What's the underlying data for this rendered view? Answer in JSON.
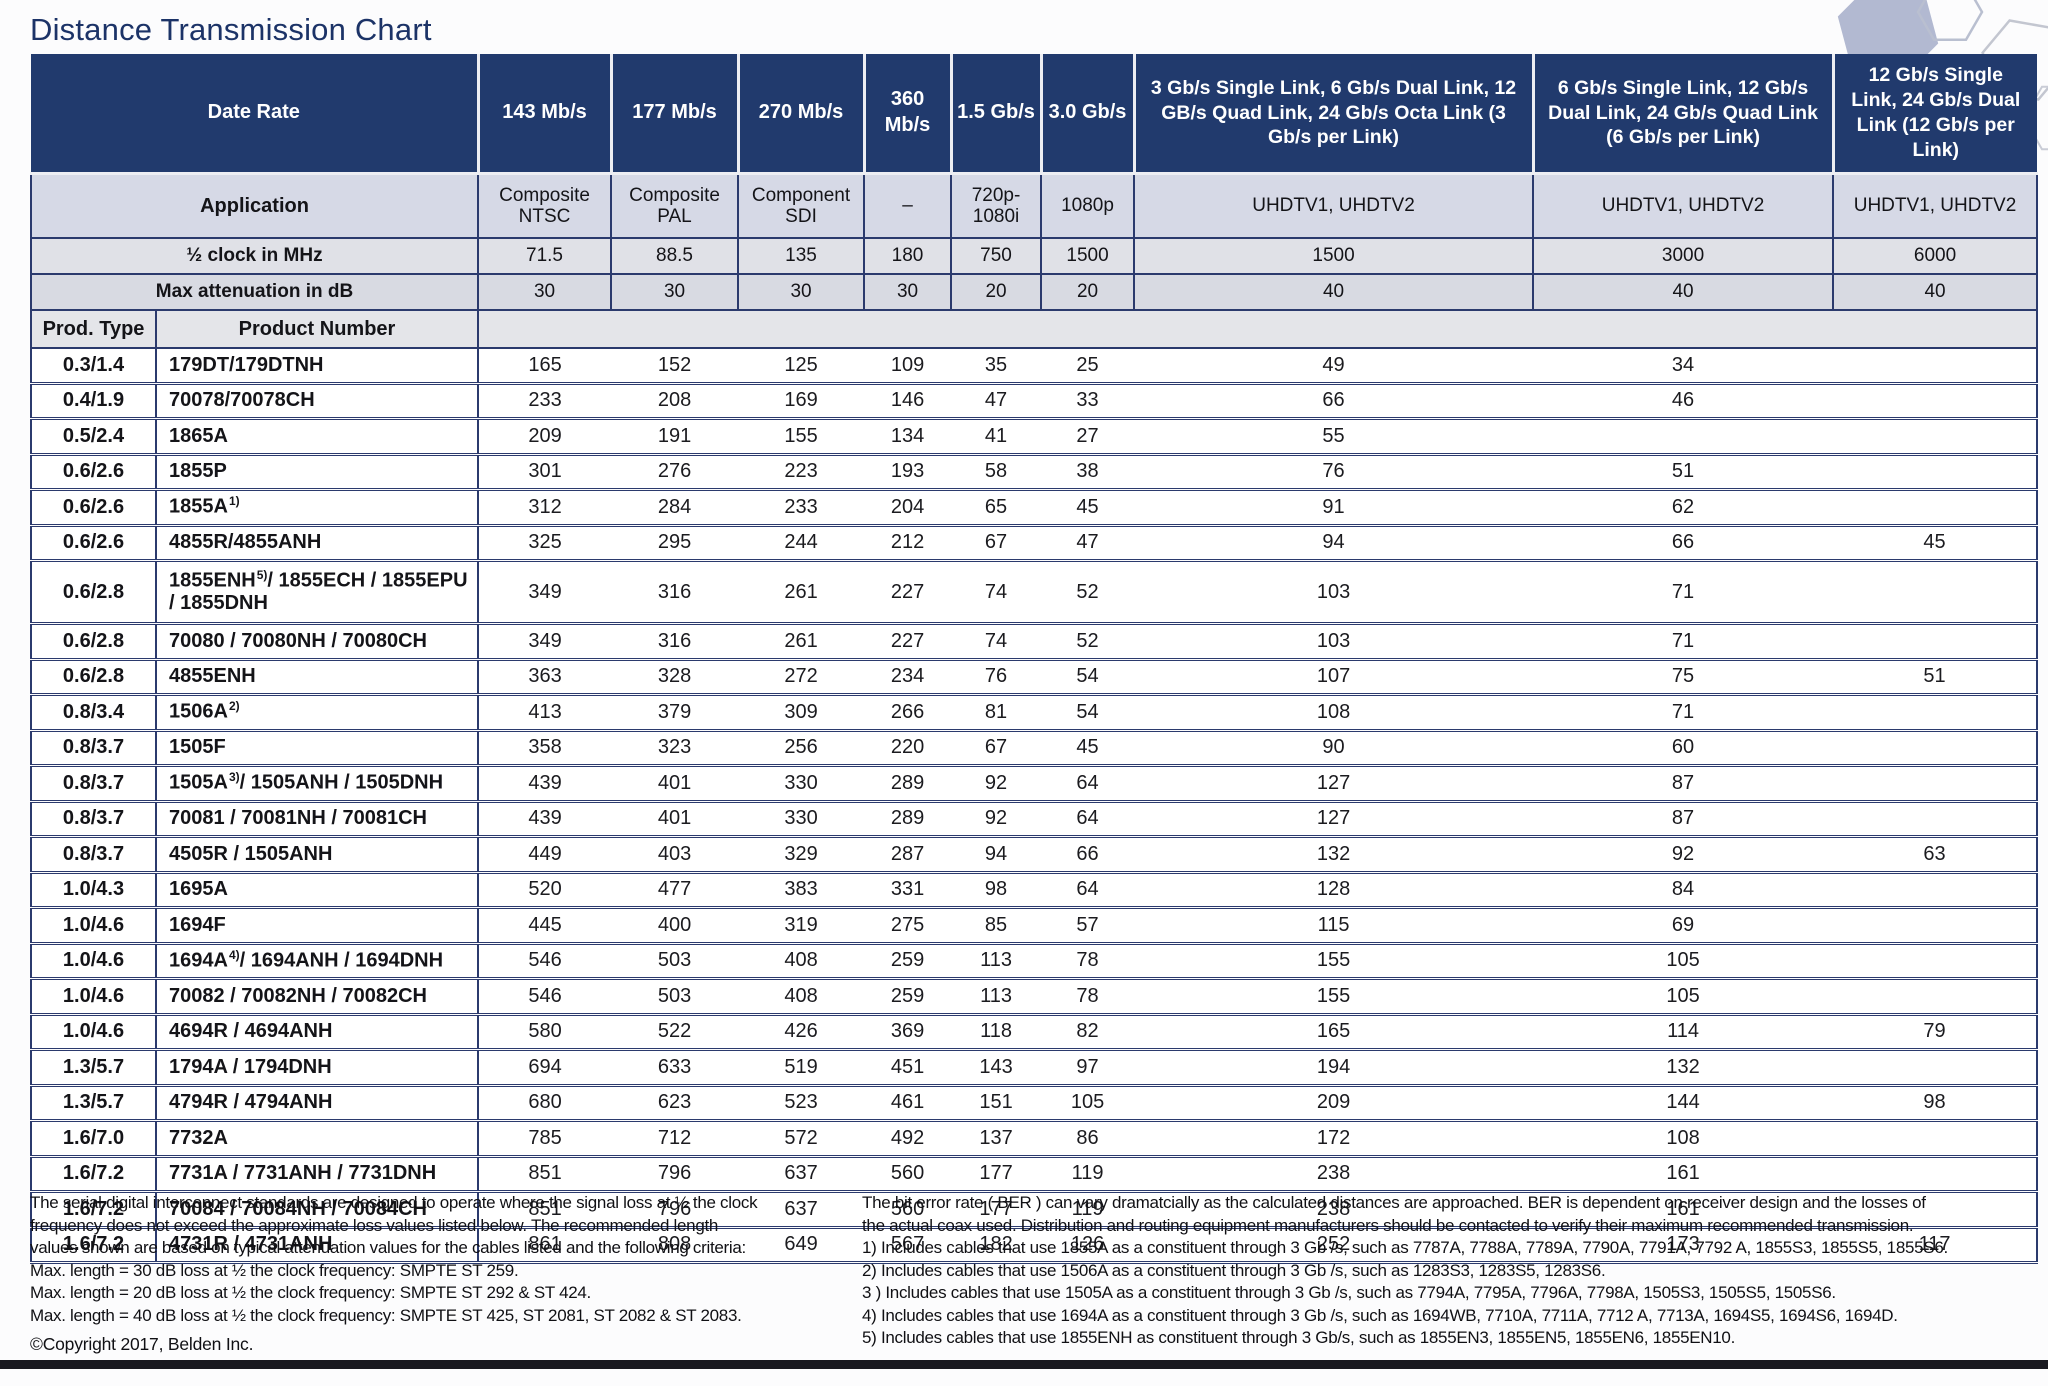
{
  "page": {
    "title": "Distance Transmission Chart"
  },
  "table": {
    "header": {
      "date_rate": "Date Rate",
      "application": "Application",
      "half_clock": "½ clock in MHz",
      "max_attenuation": "Max attenuation in dB",
      "prod_type": "Prod. Type",
      "product_number": "Product Number"
    },
    "columns": [
      {
        "rate": "143 Mb/s",
        "application": "Composite NTSC",
        "half_clock": "71.5",
        "max_attenuation": "30"
      },
      {
        "rate": "177 Mb/s",
        "application": "Composite PAL",
        "half_clock": "88.5",
        "max_attenuation": "30"
      },
      {
        "rate": "270 Mb/s",
        "application": "Component SDI",
        "half_clock": "135",
        "max_attenuation": "30"
      },
      {
        "rate": "360 Mb/s",
        "application": "–",
        "half_clock": "180",
        "max_attenuation": "30"
      },
      {
        "rate": "1.5 Gb/s",
        "application": "720p-1080i",
        "half_clock": "750",
        "max_attenuation": "20"
      },
      {
        "rate": "3.0 Gb/s",
        "application": "1080p",
        "half_clock": "1500",
        "max_attenuation": "20"
      },
      {
        "rate": "3 Gb/s Single Link, 6 Gb/s Dual Link, 12 GB/s Quad Link, 24 Gb/s Octa Link (3 Gb/s per Link)",
        "application": "UHDTV1, UHDTV2",
        "half_clock": "1500",
        "max_attenuation": "40"
      },
      {
        "rate": "6 Gb/s Single Link, 12 Gb/s Dual Link, 24 Gb/s Quad Link (6 Gb/s per Link)",
        "application": "UHDTV1, UHDTV2",
        "half_clock": "3000",
        "max_attenuation": "40"
      },
      {
        "rate": "12 Gb/s Single Link, 24 Gb/s Dual Link (12 Gb/s per Link)",
        "application": "UHDTV1, UHDTV2",
        "half_clock": "6000",
        "max_attenuation": "40"
      }
    ],
    "rows": [
      {
        "type": "0.3/1.4",
        "p1": "179DT/179DTNH",
        "sup": "",
        "p2": "",
        "tall": false,
        "v": [
          "165",
          "152",
          "125",
          "109",
          "35",
          "25",
          "49",
          "34",
          ""
        ]
      },
      {
        "type": "0.4/1.9",
        "p1": "70078/70078CH",
        "sup": "",
        "p2": "",
        "tall": false,
        "v": [
          "233",
          "208",
          "169",
          "146",
          "47",
          "33",
          "66",
          "46",
          ""
        ]
      },
      {
        "type": "0.5/2.4",
        "p1": "1865A",
        "sup": "",
        "p2": "",
        "tall": false,
        "v": [
          "209",
          "191",
          "155",
          "134",
          "41",
          "27",
          "55",
          "",
          ""
        ]
      },
      {
        "type": "0.6/2.6",
        "p1": "1855P",
        "sup": "",
        "p2": "",
        "tall": false,
        "v": [
          "301",
          "276",
          "223",
          "193",
          "58",
          "38",
          "76",
          "51",
          ""
        ]
      },
      {
        "type": "0.6/2.6",
        "p1": "1855A",
        "sup": "1)",
        "p2": "",
        "tall": false,
        "v": [
          "312",
          "284",
          "233",
          "204",
          "65",
          "45",
          "91",
          "62",
          ""
        ]
      },
      {
        "type": "0.6/2.6",
        "p1": "4855R/4855ANH",
        "sup": "",
        "p2": "",
        "tall": false,
        "v": [
          "325",
          "295",
          "244",
          "212",
          "67",
          "47",
          "94",
          "66",
          "45"
        ]
      },
      {
        "type": "0.6/2.8",
        "p1": "1855ENH",
        "sup": "5)",
        "p2": "/ 1855ECH / 1855EPU / 1855DNH",
        "tall": true,
        "v": [
          "349",
          "316",
          "261",
          "227",
          "74",
          "52",
          "103",
          "71",
          ""
        ]
      },
      {
        "type": "0.6/2.8",
        "p1": "70080 / 70080NH / 70080CH",
        "sup": "",
        "p2": "",
        "tall": false,
        "v": [
          "349",
          "316",
          "261",
          "227",
          "74",
          "52",
          "103",
          "71",
          ""
        ]
      },
      {
        "type": "0.6/2.8",
        "p1": "4855ENH",
        "sup": "",
        "p2": "",
        "tall": false,
        "v": [
          "363",
          "328",
          "272",
          "234",
          "76",
          "54",
          "107",
          "75",
          "51"
        ]
      },
      {
        "type": "0.8/3.4",
        "p1": "1506A",
        "sup": "2)",
        "p2": "",
        "tall": false,
        "v": [
          "413",
          "379",
          "309",
          "266",
          "81",
          "54",
          "108",
          "71",
          ""
        ]
      },
      {
        "type": "0.8/3.7",
        "p1": "1505F",
        "sup": "",
        "p2": "",
        "tall": false,
        "v": [
          "358",
          "323",
          "256",
          "220",
          "67",
          "45",
          "90",
          "60",
          ""
        ]
      },
      {
        "type": "0.8/3.7",
        "p1": "1505A",
        "sup": "3)",
        "p2": "/ 1505ANH / 1505DNH",
        "tall": false,
        "v": [
          "439",
          "401",
          "330",
          "289",
          "92",
          "64",
          "127",
          "87",
          ""
        ]
      },
      {
        "type": "0.8/3.7",
        "p1": "70081 / 70081NH / 70081CH",
        "sup": "",
        "p2": "",
        "tall": false,
        "v": [
          "439",
          "401",
          "330",
          "289",
          "92",
          "64",
          "127",
          "87",
          ""
        ]
      },
      {
        "type": "0.8/3.7",
        "p1": "4505R / 1505ANH",
        "sup": "",
        "p2": "",
        "tall": false,
        "v": [
          "449",
          "403",
          "329",
          "287",
          "94",
          "66",
          "132",
          "92",
          "63"
        ]
      },
      {
        "type": "1.0/4.3",
        "p1": "1695A",
        "sup": "",
        "p2": "",
        "tall": false,
        "v": [
          "520",
          "477",
          "383",
          "331",
          "98",
          "64",
          "128",
          "84",
          ""
        ]
      },
      {
        "type": "1.0/4.6",
        "p1": "1694F",
        "sup": "",
        "p2": "",
        "tall": false,
        "v": [
          "445",
          "400",
          "319",
          "275",
          "85",
          "57",
          "115",
          "69",
          ""
        ]
      },
      {
        "type": "1.0/4.6",
        "p1": "1694A",
        "sup": "4)",
        "p2": "/ 1694ANH / 1694DNH",
        "tall": false,
        "v": [
          "546",
          "503",
          "408",
          "259",
          "113",
          "78",
          "155",
          "105",
          ""
        ]
      },
      {
        "type": "1.0/4.6",
        "p1": "70082 / 70082NH / 70082CH",
        "sup": "",
        "p2": "",
        "tall": false,
        "v": [
          "546",
          "503",
          "408",
          "259",
          "113",
          "78",
          "155",
          "105",
          ""
        ]
      },
      {
        "type": "1.0/4.6",
        "p1": "4694R / 4694ANH",
        "sup": "",
        "p2": "",
        "tall": false,
        "v": [
          "580",
          "522",
          "426",
          "369",
          "118",
          "82",
          "165",
          "114",
          "79"
        ]
      },
      {
        "type": "1.3/5.7",
        "p1": "1794A / 1794DNH",
        "sup": "",
        "p2": "",
        "tall": false,
        "v": [
          "694",
          "633",
          "519",
          "451",
          "143",
          "97",
          "194",
          "132",
          ""
        ]
      },
      {
        "type": "1.3/5.7",
        "p1": "4794R / 4794ANH",
        "sup": "",
        "p2": "",
        "tall": false,
        "v": [
          "680",
          "623",
          "523",
          "461",
          "151",
          "105",
          "209",
          "144",
          "98"
        ]
      },
      {
        "type": "1.6/7.0",
        "p1": "7732A",
        "sup": "",
        "p2": "",
        "tall": false,
        "v": [
          "785",
          "712",
          "572",
          "492",
          "137",
          "86",
          "172",
          "108",
          ""
        ]
      },
      {
        "type": "1.6/7.2",
        "p1": "7731A / 7731ANH / 7731DNH",
        "sup": "",
        "p2": "",
        "tall": false,
        "v": [
          "851",
          "796",
          "637",
          "560",
          "177",
          "119",
          "238",
          "161",
          ""
        ]
      },
      {
        "type": "1.6/7.2",
        "p1": "70084 / 70084NH / 70084CH",
        "sup": "",
        "p2": "",
        "tall": false,
        "v": [
          "851",
          "796",
          "637",
          "560",
          "177",
          "119",
          "238",
          "161",
          ""
        ]
      },
      {
        "type": "1.6/7.2",
        "p1": "4731R / 4731ANH",
        "sup": "",
        "p2": "",
        "tall": false,
        "v": [
          "861",
          "808",
          "649",
          "567",
          "182",
          "126",
          "252",
          "173",
          "117"
        ]
      }
    ]
  },
  "footnotes": {
    "left": [
      "The serial digital interconnect standards are designed to operate where the signal loss at ½ the clock",
      "frequency does not exceed the approximate loss values listed below. The recommended length",
      "values shown are based on typical attenuation values for the cables listed and the following criteria:",
      "Max. length = 30 dB loss at ½ the clock frequency: SMPTE ST 259.",
      "Max. length = 20 dB loss at ½ the clock frequency: SMPTE ST 292 & ST 424.",
      "Max. length = 40 dB loss at ½ the clock frequency: SMPTE ST 425, ST 2081, ST 2082 & ST 2083."
    ],
    "copyright": "©Copyright 2017, Belden Inc.",
    "right": [
      "The bit error rate ( BER ) can vary dramatcially as the calculated distances are approached. BER is dependent on receiver design and the losses of",
      "the actual coax used. Distribution and routing equipment manufacturers should be contacted to verify their maximum recommended transmission.",
      "1) Includes cables that use 1855A as a constituent through 3 Gb /s, such as 7787A, 7788A, 7789A, 7790A, 7791A, 7792 A, 1855S3, 1855S5, 1855S6.",
      "2) Includes cables that use 1506A as a constituent through 3 Gb /s, such as 1283S3, 1283S5, 1283S6.",
      "3 ) Includes cables that use 1505A as a constituent through 3 Gb /s, such as 7794A, 7795A, 7796A, 7798A, 1505S3, 1505S5, 1505S6.",
      "4) Includes cables that use 1694A as a constituent through 3 Gb /s, such as 1694WB, 7710A, 7711A, 7712 A, 7713A, 1694S5, 1694S6, 1694D.",
      "5) Includes cables that use 1855ENH as constituent through 3 Gb/s, such as 1855EN3, 1855EN5, 1855EN6, 1855EN10."
    ]
  },
  "colors": {
    "header_navy": "#213a6d",
    "border_navy": "#2b3a6d",
    "application_row_bg": "#d6d9e6",
    "bottom_bar": "#191920",
    "title_text": "#1c3367"
  }
}
